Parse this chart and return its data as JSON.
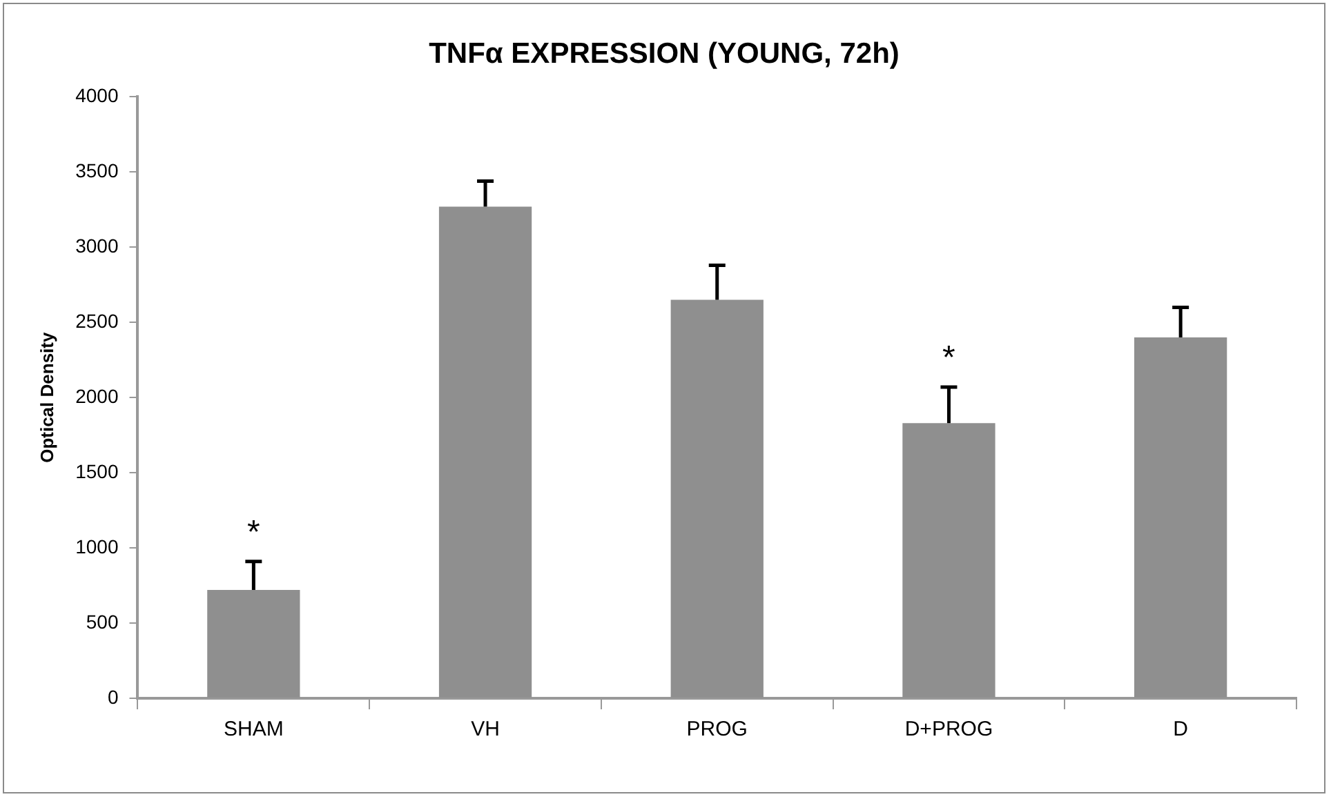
{
  "chart_data": {
    "type": "bar",
    "title": "TNFα EXPRESSION (YOUNG, 72h)",
    "ylabel": "Optical Density",
    "categories": [
      "SHAM",
      "VH",
      "PROG",
      "D+PROG",
      "D"
    ],
    "values": [
      720,
      3270,
      2650,
      1830,
      2400
    ],
    "errors": [
      [
        720,
        910
      ],
      [
        3270,
        3440
      ],
      [
        2650,
        2880
      ],
      [
        1830,
        2070
      ],
      [
        2400,
        2600
      ]
    ],
    "color": "#8f8f8f",
    "ylim": [
      0,
      4000
    ],
    "yticks": [
      0,
      500,
      1000,
      1500,
      2000,
      2500,
      3000,
      3500,
      4000
    ],
    "annotations": [
      {
        "text": "*",
        "x": "SHAM",
        "y": 910
      },
      {
        "text": "*",
        "x": "D+PROG",
        "y": 2070
      }
    ]
  }
}
